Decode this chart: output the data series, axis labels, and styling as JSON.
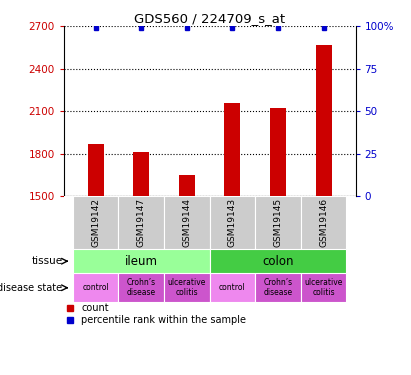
{
  "title": "GDS560 / 224709_s_at",
  "samples": [
    "GSM19142",
    "GSM19147",
    "GSM19144",
    "GSM19143",
    "GSM19145",
    "GSM19146"
  ],
  "count_values": [
    1870,
    1810,
    1650,
    2155,
    2120,
    2570
  ],
  "percentile_values": [
    99,
    99,
    99,
    99,
    99,
    99
  ],
  "ymin": 1500,
  "ymax": 2700,
  "ylim_right": [
    0,
    100
  ],
  "yticks_left": [
    1500,
    1800,
    2100,
    2400,
    2700
  ],
  "yticks_right": [
    0,
    25,
    50,
    75,
    100
  ],
  "ytick_labels_right": [
    "0",
    "25",
    "50",
    "75",
    "100%"
  ],
  "bar_color": "#cc0000",
  "percentile_color": "#0000cc",
  "tissue_ileum_color": "#99ff99",
  "tissue_colon_color": "#44cc44",
  "disease_states": [
    "control",
    "Crohn’s\ndisease",
    "ulcerative\ncolitis",
    "control",
    "Crohn’s\ndisease",
    "ulcerative\ncolitis"
  ],
  "disease_state_colors": [
    "#ee88ee",
    "#cc55cc",
    "#cc55cc",
    "#ee88ee",
    "#cc55cc",
    "#cc55cc"
  ],
  "sample_bg_color": "#cccccc",
  "left_tick_color": "#cc0000",
  "right_tick_color": "#0000cc",
  "bar_width": 0.35,
  "legend_count_label": "count",
  "legend_percentile_label": "percentile rank within the sample"
}
